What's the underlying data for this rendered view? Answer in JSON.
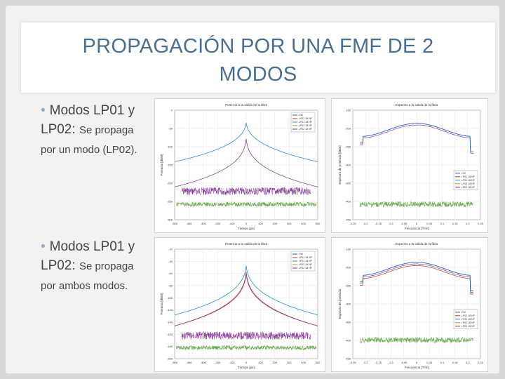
{
  "slide": {
    "title_line1": "PROPAGACIÓN POR UNA FMF DE 2",
    "title_line2": "MODOS",
    "bullets": [
      {
        "bullet_char": "•",
        "bold_text": "Modos LP01 y",
        "line2_bold": "LP02:",
        "line2_small": "Se propaga",
        "line3": "por un modo (LP02)."
      },
      {
        "bullet_char": "•",
        "bold_text": "Modos LP01 y",
        "line2_bold": "LP02:",
        "line2_small": "Se propaga",
        "line3": "por ambos modos."
      }
    ]
  },
  "figures": {
    "top_left": {
      "title": "Potencia a la salida de la fibra",
      "xlabel": "Tiempo [ps]",
      "ylabel": "Potencia [dBW]",
      "x_ticks": [
        "-500",
        "-400",
        "-300",
        "-200",
        "-100",
        "0",
        "100",
        "200",
        "300",
        "400",
        "500"
      ],
      "y_ticks": [
        "0",
        "-50",
        "-100",
        "-150",
        "-200",
        "-250",
        "-300"
      ],
      "legend": [
        "CW",
        "LP01 18 HP",
        "LP01 18 HP",
        "LP02 18 HP",
        "LP02 18 HP"
      ]
    },
    "top_right": {
      "title": "Espectro a la salida de la fibra",
      "xlabel": "Frecuencia [THz]",
      "ylabel": "Espectro de potencia [dBm]",
      "x_ticks": [
        "-0.25",
        "-0.2",
        "-0.15",
        "-0.1",
        "-0.05",
        "0",
        "0.05",
        "0.1",
        "0.15",
        "0.2",
        "0.25"
      ],
      "y_ticks": [
        "-150",
        "-200",
        "-250",
        "-300",
        "-350",
        "-400",
        "-450"
      ],
      "legend": [
        "CW",
        "LP01 18 HP",
        "LP01 18 HP",
        "LP02 18 HP",
        "LP02 18 HP"
      ]
    },
    "bottom_left": {
      "title": "Potencia a la salida de la fibra",
      "xlabel": "Tiempo [ps]",
      "ylabel": "Potencia [dBW]",
      "x_ticks": [
        "-500",
        "-400",
        "-300",
        "-200",
        "-100",
        "0",
        "100",
        "200",
        "300",
        "400",
        "500"
      ],
      "y_ticks": [
        "-20",
        "-40",
        "-60",
        "-80",
        "-100",
        "-120",
        "-140",
        "-160",
        "-180",
        "-200"
      ],
      "legend": [
        "CW",
        "LP01 18 HP",
        "LP01 18 HP",
        "LP02 18 HP",
        "LP02 18 HP"
      ]
    },
    "bottom_right": {
      "title": "Espectro a la salida de la fibra",
      "xlabel": "Frecuencia [THz]",
      "ylabel": "Espectro de potencia",
      "x_ticks": [
        "-0.25",
        "-0.2",
        "-0.15",
        "-0.1",
        "-0.05",
        "0",
        "0.05",
        "0.1",
        "0.15",
        "0.2",
        "0.25"
      ],
      "y_ticks": [
        "-150",
        "-200",
        "-250",
        "-300",
        "-350",
        "-400",
        "-450"
      ],
      "legend": [
        "CW",
        "LP01 18 HP",
        "LP01 18 HP",
        "LP02 18 HP",
        "LP02 18 HP"
      ]
    },
    "colors": {
      "cw": "#1f5fbf",
      "red": "#c0392b",
      "blue": "#2b8cd6",
      "purple": "#7b2d8e",
      "green": "#6aa84f",
      "orange": "#d98c1a"
    }
  }
}
